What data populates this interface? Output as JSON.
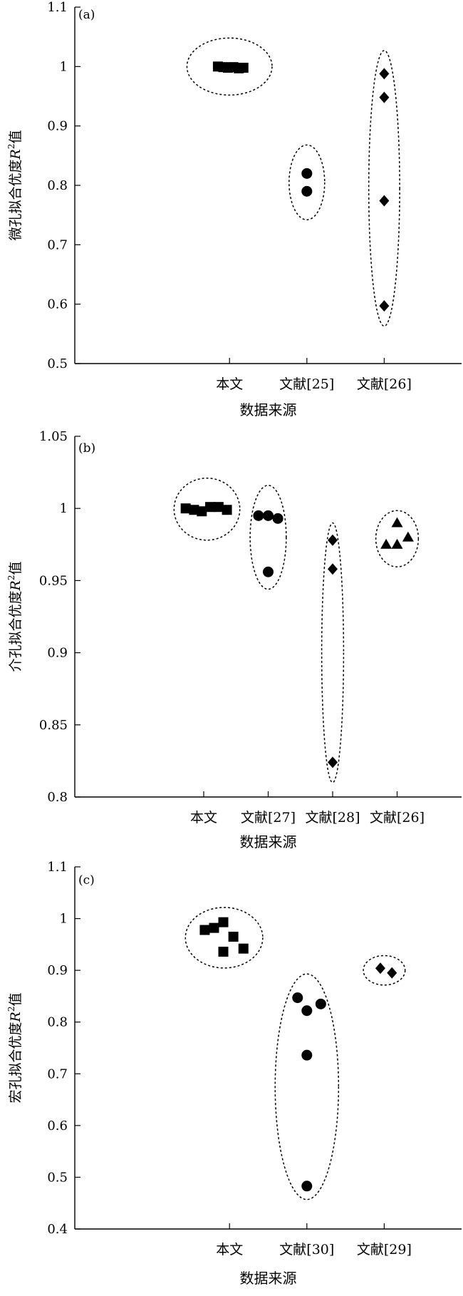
{
  "chart_data": [
    {
      "type": "scatter",
      "panel_label": "(a)",
      "ylabel_main": "微孔拟合优度",
      "ylabel_r": "R",
      "ylabel_sup": "2",
      "ylabel_tail": "值",
      "xlabel": "数据来源",
      "ylim": [
        0.5,
        1.1
      ],
      "yticks": [
        "0.5",
        "0.6",
        "0.7",
        "0.8",
        "0.9",
        "1",
        "1.1"
      ],
      "categories": [
        "本文",
        "文献[25]",
        "文献[26]"
      ],
      "grid": false,
      "series": [
        {
          "category": "本文",
          "marker": "square",
          "x": [
            1.85,
            1.92,
            1.98,
            2.05,
            2.12,
            2.18
          ],
          "y": [
            1.0,
            0.999,
            0.998,
            0.999,
            0.997,
            0.998
          ]
        },
        {
          "category": "文献[25]",
          "marker": "circle",
          "x": [
            3.0,
            3.0
          ],
          "y": [
            0.82,
            0.79
          ]
        },
        {
          "category": "文献[26]",
          "marker": "diamond",
          "x": [
            4.0,
            4.0,
            4.0,
            4.0
          ],
          "y": [
            0.988,
            0.948,
            0.774,
            0.597
          ]
        }
      ],
      "groups": [
        {
          "cx": 2.0,
          "cy": 1.0,
          "rx": 0.55,
          "ry": 0.048
        },
        {
          "cx": 3.0,
          "cy": 0.805,
          "rx": 0.23,
          "ry": 0.063
        },
        {
          "cx": 4.0,
          "cy": 0.795,
          "rx": 0.2,
          "ry": 0.232
        }
      ]
    },
    {
      "type": "scatter",
      "panel_label": "(b)",
      "ylabel_main": "介孔拟合优度",
      "ylabel_r": "R",
      "ylabel_sup": "2",
      "ylabel_tail": "值",
      "xlabel": "数据来源",
      "ylim": [
        0.8,
        1.05
      ],
      "yticks": [
        "0.8",
        "0.85",
        "0.9",
        "0.95",
        "1",
        "1.05"
      ],
      "categories": [
        "本文",
        "文献[27]",
        "文献[28]",
        "文献[26]"
      ],
      "grid": false,
      "series": [
        {
          "category": "本文",
          "marker": "square",
          "x": [
            1.72,
            1.85,
            1.97,
            2.1,
            2.23,
            2.36
          ],
          "y": [
            1.0,
            0.999,
            0.998,
            1.001,
            1.001,
            0.999
          ]
        },
        {
          "category": "文献[27]",
          "marker": "circle",
          "x": [
            2.85,
            3.0,
            3.15,
            3.0
          ],
          "y": [
            0.995,
            0.995,
            0.993,
            0.956
          ]
        },
        {
          "category": "文献[28]",
          "marker": "diamond",
          "x": [
            4.0,
            4.0,
            4.0
          ],
          "y": [
            0.978,
            0.958,
            0.824
          ]
        },
        {
          "category": "文献[26]",
          "marker": "triangle",
          "x": [
            4.83,
            5.0,
            5.0,
            5.17
          ],
          "y": [
            0.975,
            0.99,
            0.975,
            0.98
          ]
        }
      ],
      "groups": [
        {
          "cx": 2.05,
          "cy": 0.9995,
          "rx": 0.51,
          "ry": 0.0215
        },
        {
          "cx": 3.0,
          "cy": 0.98,
          "rx": 0.28,
          "ry": 0.036
        },
        {
          "cx": 4.0,
          "cy": 0.9,
          "rx": 0.17,
          "ry": 0.09
        },
        {
          "cx": 5.0,
          "cy": 0.979,
          "rx": 0.33,
          "ry": 0.0195
        }
      ]
    },
    {
      "type": "scatter",
      "panel_label": "(c)",
      "ylabel_main": "宏孔拟合优度",
      "ylabel_r": "R",
      "ylabel_sup": "2",
      "ylabel_tail": "值",
      "xlabel": "数据来源",
      "ylim": [
        0.4,
        1.1
      ],
      "yticks": [
        "0.4",
        "0.5",
        "0.6",
        "0.7",
        "0.8",
        "0.9",
        "1",
        "1.1"
      ],
      "categories": [
        "本文",
        "文献[30]",
        "文献[29]"
      ],
      "grid": false,
      "series": [
        {
          "category": "本文",
          "marker": "square",
          "x": [
            1.68,
            1.8,
            1.92,
            1.92,
            2.05,
            2.18
          ],
          "y": [
            0.978,
            0.982,
            0.993,
            0.936,
            0.965,
            0.942
          ]
        },
        {
          "category": "文献[30]",
          "marker": "circle",
          "x": [
            2.88,
            3.0,
            3.18,
            3.0,
            3.0
          ],
          "y": [
            0.847,
            0.822,
            0.835,
            0.736,
            0.483
          ]
        },
        {
          "category": "文献[29]",
          "marker": "diamond",
          "x": [
            3.95,
            4.1
          ],
          "y": [
            0.904,
            0.895
          ]
        }
      ],
      "groups": [
        {
          "cx": 1.93,
          "cy": 0.963,
          "rx": 0.5,
          "ry": 0.0585
        },
        {
          "cx": 3.0,
          "cy": 0.675,
          "rx": 0.41,
          "ry": 0.218
        },
        {
          "cx": 4.0,
          "cy": 0.9,
          "rx": 0.27,
          "ry": 0.0285
        }
      ]
    }
  ]
}
